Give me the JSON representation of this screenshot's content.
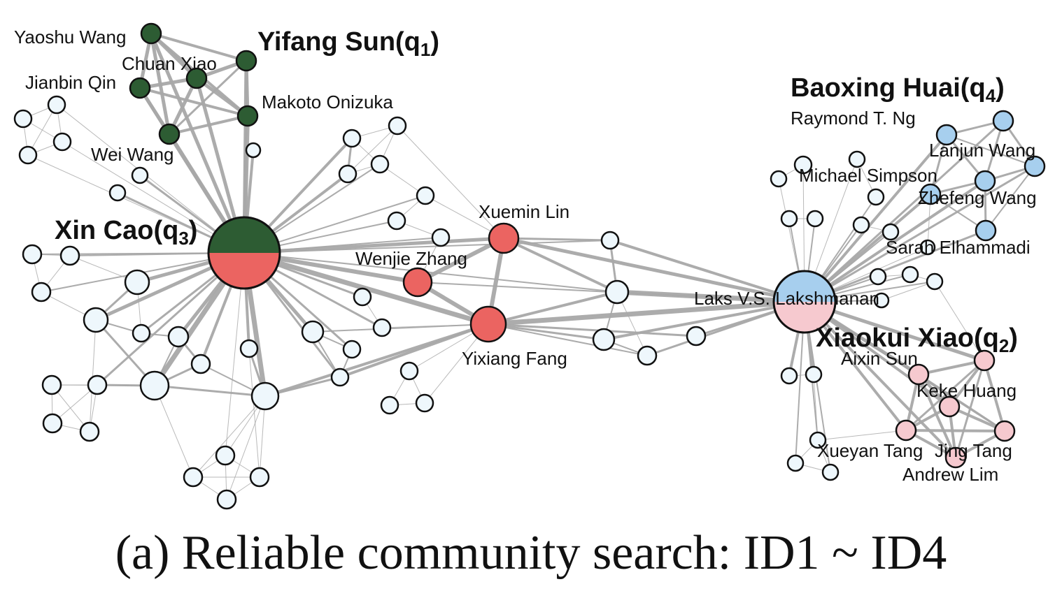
{
  "figure": {
    "caption": "(a) Reliable community search: ID1 ~ ID4",
    "colors": {
      "community_q1_q3": "#2d5c33",
      "community_q3_core": "#eb6461",
      "community_q4": "#a7cfee",
      "community_q2": "#f6c9cf",
      "other_node": "#eef7fc",
      "edge": "#a8a8a8",
      "stroke": "#111111"
    }
  },
  "labels": {
    "yifang": "Yifang Sun(q",
    "yifang_sub": "1",
    "xincao": "Xin Cao(q",
    "xincao_sub": "3",
    "baoxing": "Baoxing Huai(q",
    "baoxing_sub": "4",
    "xiaokui": "Xiaokui Xiao(q",
    "xiaokui_sub": "2",
    "close": ")",
    "yaoshu": "Yaoshu Wang",
    "chuan": "Chuan Xiao",
    "jianbin": "Jianbin Qin",
    "makoto": "Makoto Onizuka",
    "weiwang": "Wei Wang",
    "xuemin": "Xuemin Lin",
    "wenjie": "Wenjie Zhang",
    "yixiang": "Yixiang Fang",
    "raymond": "Raymond T. Ng",
    "lanjun": "Lanjun Wang",
    "michael": "Michael Simpson",
    "zhefeng": "Zhefeng Wang",
    "sarah": "Sarah Elhammadi",
    "laks": "Laks V.S. Lakshmanan",
    "aixin": "Aixin Sun",
    "keke": "Keke Huang",
    "xueyan": "Xueyan Tang",
    "jing": "Jing Tang",
    "andrew": "Andrew Lim"
  }
}
